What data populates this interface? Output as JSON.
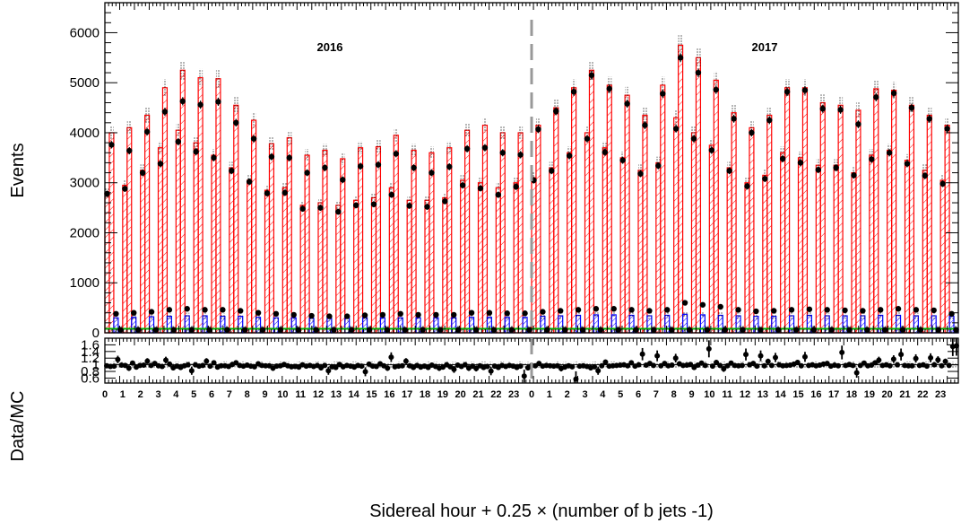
{
  "chart_data": [
    {
      "type": "bar",
      "panel": "top",
      "ylabel": "Events",
      "ylim": [
        0,
        6600
      ],
      "yticks": [
        0,
        1000,
        2000,
        3000,
        4000,
        5000,
        6000
      ],
      "annotations": [
        "2016",
        "2017"
      ],
      "xlabel": "Sidereal hour + 0.25 × (number of b jets -1)",
      "hour_labels": [
        "0",
        "1",
        "2",
        "3",
        "4",
        "5",
        "6",
        "7",
        "8",
        "9",
        "10",
        "11",
        "12",
        "13",
        "14",
        "15",
        "16",
        "17",
        "18",
        "19",
        "20",
        "21",
        "22",
        "23",
        "0",
        "1",
        "2",
        "3",
        "4",
        "5",
        "6",
        "7",
        "8",
        "9",
        "10",
        "11",
        "12",
        "13",
        "14",
        "15",
        "16",
        "17",
        "18",
        "19",
        "20",
        "21",
        "22",
        "23"
      ],
      "data_values": [
        [
          2780,
          3760,
          380,
          60
        ],
        [
          2880,
          3640,
          400,
          60
        ],
        [
          3200,
          4020,
          420,
          60
        ],
        [
          3380,
          4420,
          460,
          60
        ],
        [
          3820,
          4630,
          480,
          60
        ],
        [
          3620,
          4560,
          460,
          60
        ],
        [
          3500,
          4620,
          460,
          60
        ],
        [
          3240,
          4200,
          440,
          60
        ],
        [
          3020,
          3880,
          400,
          60
        ],
        [
          2790,
          3520,
          380,
          60
        ],
        [
          2800,
          3500,
          360,
          60
        ],
        [
          2480,
          3200,
          340,
          60
        ],
        [
          2500,
          3300,
          330,
          60
        ],
        [
          2420,
          3060,
          330,
          60
        ],
        [
          2550,
          3330,
          350,
          60
        ],
        [
          2570,
          3360,
          360,
          60
        ],
        [
          2760,
          3580,
          380,
          60
        ],
        [
          2540,
          3300,
          360,
          60
        ],
        [
          2520,
          3200,
          360,
          60
        ],
        [
          2630,
          3320,
          360,
          60
        ],
        [
          2950,
          3680,
          400,
          60
        ],
        [
          2890,
          3700,
          400,
          60
        ],
        [
          2760,
          3600,
          390,
          60
        ],
        [
          2920,
          3560,
          390,
          60
        ],
        [
          3050,
          4070,
          420,
          60
        ],
        [
          3240,
          4430,
          440,
          60
        ],
        [
          3540,
          4820,
          460,
          60
        ],
        [
          3880,
          5150,
          480,
          60
        ],
        [
          3610,
          4880,
          480,
          60
        ],
        [
          3450,
          4580,
          460,
          60
        ],
        [
          3180,
          4150,
          440,
          60
        ],
        [
          3340,
          4780,
          460,
          60
        ],
        [
          4080,
          5500,
          600,
          60
        ],
        [
          3880,
          5200,
          560,
          60
        ],
        [
          3650,
          4860,
          520,
          60
        ],
        [
          3240,
          4280,
          460,
          60
        ],
        [
          2930,
          4000,
          430,
          60
        ],
        [
          3080,
          4250,
          440,
          60
        ],
        [
          3480,
          4820,
          460,
          60
        ],
        [
          3400,
          4850,
          470,
          60
        ],
        [
          3260,
          4480,
          460,
          60
        ],
        [
          3300,
          4460,
          450,
          60
        ],
        [
          3150,
          4170,
          440,
          60
        ],
        [
          3470,
          4710,
          460,
          60
        ],
        [
          3600,
          4790,
          480,
          60
        ],
        [
          3380,
          4500,
          460,
          60
        ],
        [
          3140,
          4280,
          450,
          60
        ],
        [
          2980,
          4080,
          380,
          60
        ]
      ],
      "mc_values": [
        [
          2800,
          4000,
          300,
          80
        ],
        [
          2950,
          4100,
          310,
          80
        ],
        [
          3250,
          4350,
          320,
          80
        ],
        [
          3700,
          4900,
          330,
          80
        ],
        [
          4050,
          5250,
          340,
          80
        ],
        [
          3800,
          5100,
          340,
          80
        ],
        [
          3550,
          5080,
          330,
          80
        ],
        [
          3300,
          4550,
          330,
          80
        ],
        [
          3050,
          4250,
          310,
          80
        ],
        [
          2850,
          3780,
          300,
          80
        ],
        [
          2900,
          3900,
          300,
          80
        ],
        [
          2550,
          3550,
          290,
          80
        ],
        [
          2600,
          3650,
          290,
          80
        ],
        [
          2550,
          3480,
          290,
          80
        ],
        [
          2650,
          3700,
          300,
          80
        ],
        [
          2700,
          3720,
          300,
          80
        ],
        [
          2900,
          3950,
          300,
          80
        ],
        [
          2650,
          3650,
          300,
          80
        ],
        [
          2650,
          3600,
          300,
          80
        ],
        [
          2700,
          3700,
          300,
          80
        ],
        [
          3050,
          4050,
          310,
          80
        ],
        [
          3000,
          4150,
          310,
          80
        ],
        [
          2900,
          4000,
          310,
          80
        ],
        [
          3000,
          4000,
          310,
          80
        ],
        [
          3100,
          4150,
          330,
          80
        ],
        [
          3300,
          4500,
          340,
          80
        ],
        [
          3600,
          4900,
          350,
          80
        ],
        [
          4000,
          5250,
          360,
          80
        ],
        [
          3700,
          4950,
          360,
          80
        ],
        [
          3500,
          4750,
          350,
          80
        ],
        [
          3250,
          4350,
          340,
          80
        ],
        [
          3400,
          4950,
          350,
          80
        ],
        [
          4300,
          5750,
          370,
          80
        ],
        [
          4000,
          5500,
          360,
          80
        ],
        [
          3750,
          5050,
          350,
          80
        ],
        [
          3300,
          4400,
          340,
          80
        ],
        [
          3000,
          4100,
          330,
          80
        ],
        [
          3150,
          4350,
          330,
          80
        ],
        [
          3600,
          4900,
          340,
          80
        ],
        [
          3500,
          4900,
          350,
          80
        ],
        [
          3350,
          4600,
          340,
          80
        ],
        [
          3350,
          4550,
          340,
          80
        ],
        [
          3200,
          4450,
          340,
          80
        ],
        [
          3550,
          4880,
          350,
          80
        ],
        [
          3650,
          4850,
          350,
          80
        ],
        [
          3450,
          4550,
          340,
          80
        ],
        [
          3250,
          4350,
          340,
          80
        ],
        [
          3050,
          4150,
          330,
          80
        ]
      ],
      "colors": {
        "signal": "#ff0000",
        "background_blue": "#0000ff",
        "background_green": "#00aa00",
        "data": "#000000",
        "divider": "#999999"
      }
    },
    {
      "type": "scatter",
      "panel": "bottom",
      "ylabel": "Data/MC",
      "ylim": [
        0.45,
        1.8
      ],
      "yticks": [
        0.6,
        0.8,
        1,
        1.2,
        1.4,
        1.6
      ],
      "yticklabels": [
        "0.6",
        "0.8",
        "1",
        "1.2",
        "1.4",
        "1.6"
      ],
      "reference": 1,
      "ratio": [
        0.97,
        0.95,
        0.96,
        1.16,
        0.99,
        0.98,
        0.9,
        1.05,
        0.93,
        0.98,
        0.99,
        1.11,
        0.98,
        1.04,
        0.97,
        0.95,
        1.14,
        1.02,
        0.91,
        0.96,
        0.92,
        0.97,
        1.0,
        0.82,
        1.0,
        0.96,
        0.98,
        1.11,
        0.96,
        1.06,
        0.93,
        0.97,
        0.97,
        0.95,
        1.01,
        1.06,
        0.98,
        0.96,
        0.99,
        0.96,
        0.94,
        1.03,
        0.98,
        0.97,
        0.97,
        0.9,
        0.96,
        0.97,
        1.01,
        0.97,
        0.94,
        0.95,
        0.93,
        1.0,
        0.96,
        0.98,
        0.95,
        0.98,
        0.91,
        0.98,
        0.82,
        0.94,
        0.92,
        1.01,
        0.94,
        0.98,
        0.96,
        0.93,
        0.98,
        0.96,
        0.79,
        1.02,
        0.96,
        0.95,
        1.03,
        0.97,
        0.9,
        1.23,
        0.94,
        0.96,
        0.97,
        1.11,
        0.97,
        0.92,
        0.98,
        0.93,
        0.96,
        0.92,
        0.99,
        0.95,
        0.9,
        0.93,
        1.0,
        0.94,
        0.86,
        0.99,
        0.95,
        1.0,
        0.9,
        0.96,
        0.89,
        0.97,
        0.92,
        0.95,
        0.81,
        0.96,
        0.92,
        0.98,
        0.95,
        0.98,
        0.96,
        0.92,
        0.96,
        0.66,
        0.91,
        0.98,
        0.97,
        1.04,
        0.96,
        0.98,
        0.97,
        0.96,
        0.97,
        0.89,
        0.93,
        0.97,
        0.94,
        0.57,
        0.96,
        0.97,
        0.95,
        0.91,
        0.94,
        0.82,
        0.97,
        1.08,
        0.96,
        0.97,
        0.98,
        0.99,
        1.0,
        0.97,
        1.06,
        0.96,
        1.0,
        1.32,
        0.99,
        1.04,
        0.98,
        1.27,
        0.97,
        1.04,
        0.97,
        0.99,
        1.2,
        1.03,
        0.98,
        0.99,
        1.01,
        0.92,
        0.99,
        1.05,
        0.98,
        1.48,
        0.96,
        1.07,
        0.98,
        0.88,
        0.97,
        1.05,
        0.98,
        0.97,
        0.98,
        1.31,
        1.0,
        1.04,
        0.96,
        1.27,
        0.97,
        1.1,
        0.98,
        1.22,
        1.0,
        0.97,
        0.98,
        0.99,
        1.02,
        1.07,
        0.97,
        1.24,
        0.98,
        1.0,
        0.97,
        0.99,
        1.02,
        1.04,
        0.96,
        0.99,
        0.97,
        1.37,
        0.98,
        1.01,
        0.98,
        0.76,
        0.98,
        1.05,
        0.97,
        0.99,
        1.06,
        1.14,
        0.98,
        1.0,
        0.97,
        1.17,
        1.0,
        1.31,
        0.98,
        0.97,
        0.97,
        1.19,
        0.98,
        1.0,
        0.96,
        1.21,
        1.0,
        1.15,
        0.97,
        1.1,
        0.98,
        1.55,
        1.57
      ]
    }
  ]
}
